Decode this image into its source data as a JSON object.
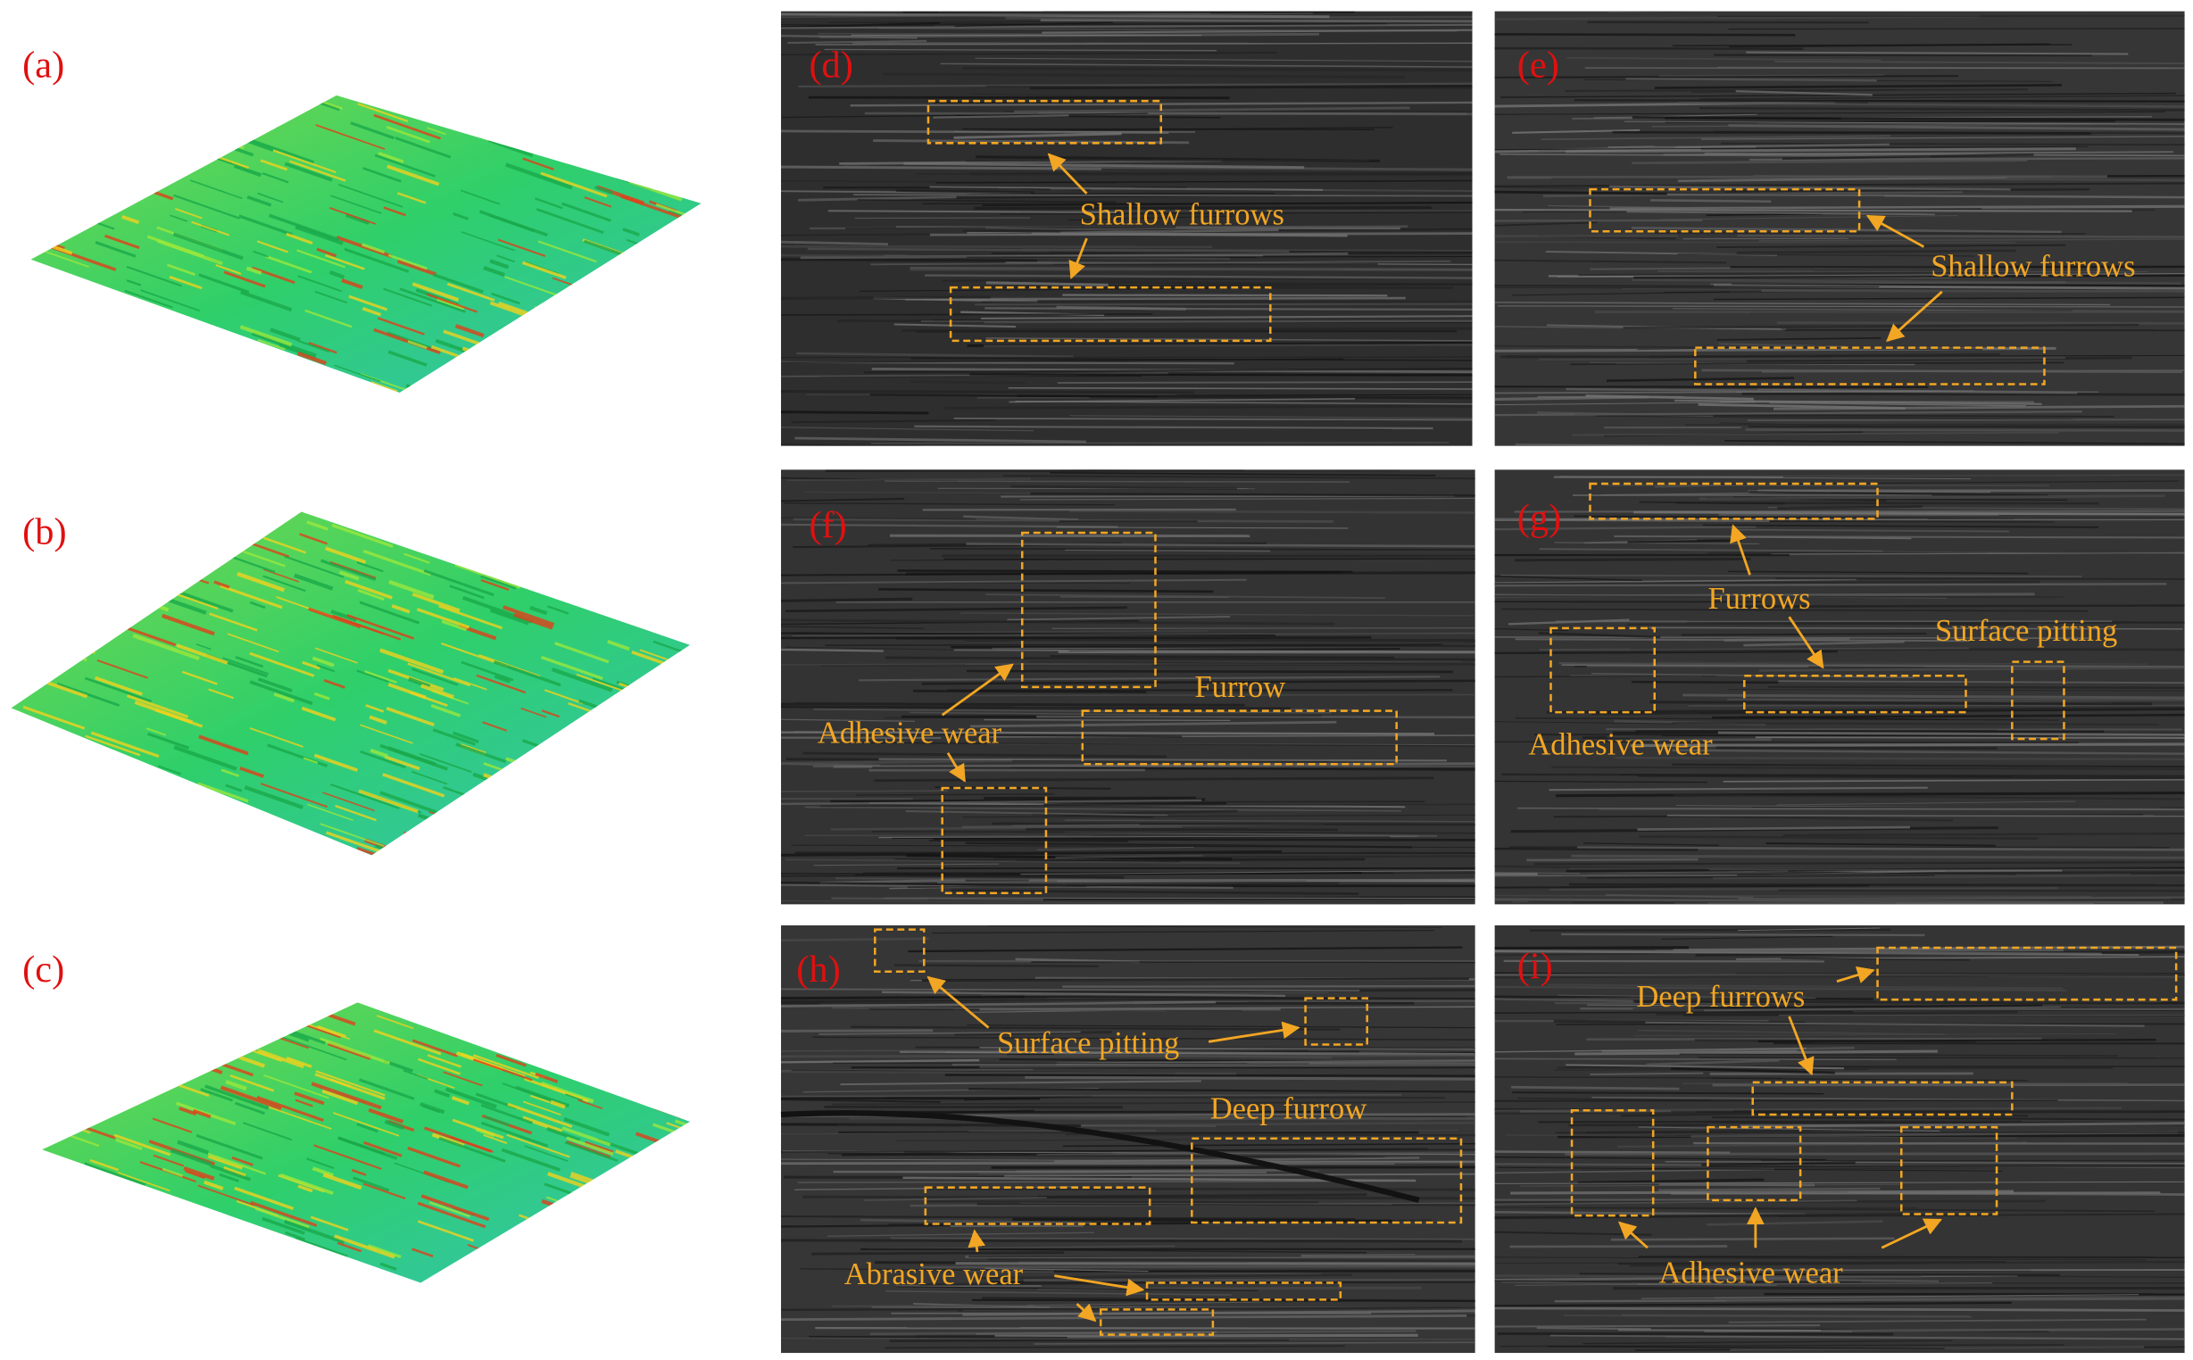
{
  "panels": [
    {
      "label": "(a)"
    },
    {
      "label": "(b)"
    },
    {
      "label": "(c)"
    },
    {
      "label": "(d)",
      "annotations": [
        "Shallow furrows"
      ]
    },
    {
      "label": "(e)",
      "annotations": [
        "Shallow furrows"
      ]
    },
    {
      "label": "(f)",
      "annotations": [
        "Adhesive wear",
        "Furrow"
      ]
    },
    {
      "label": "(g)",
      "annotations": [
        "Furrows",
        "Surface pitting",
        "Adhesive wear"
      ]
    },
    {
      "label": "(h)",
      "annotations": [
        "Surface pitting",
        "Deep furrow",
        "Abrasive wear"
      ]
    },
    {
      "label": "(i)",
      "annotations": [
        "Deep furrows",
        "Adhesive wear"
      ]
    }
  ]
}
